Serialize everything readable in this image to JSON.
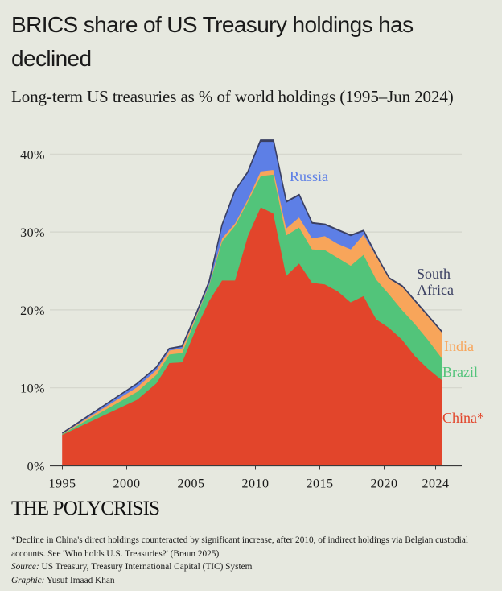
{
  "title": "BRICS share of US Treasury holdings has declined",
  "subtitle": "Long-term US treasuries as % of world holdings (1995–Jun 2024)",
  "brand": "THE POLYCRISIS",
  "footnote": "*Decline in China's direct holdings counteracted by significant increase, after 2010, of indirect holdings via Belgian custodial accounts. See 'Who holds U.S. Treasuries?' (Braun 2025)",
  "source_label": "Source:",
  "source_text": " US Treasury, Treasury International Capital (TIC) System",
  "graphic_label": "Graphic:",
  "graphic_text": " Yusuf Imaad Khan",
  "chart_data": {
    "type": "area",
    "stacked": true,
    "title": "BRICS share of US Treasury holdings has declined",
    "subtitle": "Long-term US treasuries as % of world holdings (1995–Jun 2024)",
    "xlabel": "",
    "ylabel": "",
    "xlim": [
      1995,
      2026.5
    ],
    "ylim": [
      0,
      40
    ],
    "grid": true,
    "x_ticks": [
      1995,
      2000,
      2005,
      2010,
      2015,
      2020,
      2024
    ],
    "x_tick_labels": [
      "1995",
      "2000",
      "2005",
      "2010",
      "2015",
      "2020",
      "2024"
    ],
    "y_ticks": [
      0,
      10,
      20,
      30,
      40
    ],
    "y_tick_labels": [
      "0%",
      "10%",
      "20%",
      "30%",
      "40%"
    ],
    "x": [
      1995.0,
      2000.8,
      2002.3,
      2003.3,
      2004.3,
      2005.4,
      2006.4,
      2007.4,
      2008.4,
      2009.4,
      2010.4,
      2011.4,
      2012.4,
      2013.4,
      2014.4,
      2015.4,
      2016.4,
      2017.4,
      2018.4,
      2019.4,
      2020.4,
      2021.4,
      2022.4,
      2023.4,
      2024.5
    ],
    "series": [
      {
        "name": "China",
        "label": "China*",
        "color": "#e2452b",
        "values": [
          4.0,
          8.5,
          10.6,
          13.2,
          13.3,
          17.7,
          21.2,
          23.8,
          23.8,
          29.5,
          33.2,
          32.4,
          24.4,
          26.0,
          23.5,
          23.3,
          22.4,
          21.0,
          21.8,
          18.8,
          17.7,
          16.2,
          14.1,
          12.5,
          11.0
        ]
      },
      {
        "name": "Brazil",
        "label": "Brazil",
        "color": "#52c47a",
        "values": [
          0.1,
          1.0,
          1.1,
          1.1,
          1.2,
          1.4,
          2.0,
          5.0,
          7.0,
          4.4,
          4.0,
          5.0,
          5.2,
          4.6,
          4.3,
          4.4,
          4.3,
          4.7,
          5.3,
          5.1,
          4.3,
          3.8,
          4.1,
          3.7,
          2.8
        ]
      },
      {
        "name": "India",
        "label": "India",
        "color": "#f8a55a",
        "values": [
          0.05,
          0.6,
          0.6,
          0.5,
          0.6,
          0.2,
          0.1,
          0.4,
          0.3,
          0.3,
          0.6,
          0.6,
          0.9,
          1.3,
          1.4,
          1.8,
          1.8,
          2.1,
          2.6,
          3.0,
          2.0,
          3.0,
          2.9,
          3.0,
          3.3
        ]
      },
      {
        "name": "Russia",
        "label": "Russia",
        "color": "#5d7fe6",
        "values": [
          0.05,
          0.4,
          0.3,
          0.2,
          0.2,
          0.2,
          0.3,
          1.6,
          4.1,
          3.4,
          3.8,
          3.6,
          3.3,
          2.8,
          1.9,
          1.4,
          1.7,
          1.7,
          0.4,
          0.0,
          0.0,
          0.0,
          0.0,
          0.0,
          0.0
        ]
      },
      {
        "name": "South Africa",
        "label": "South Africa",
        "color": "#3b4063",
        "values": [
          0.0,
          0.05,
          0.05,
          0.05,
          0.05,
          0.05,
          0.05,
          0.1,
          0.1,
          0.1,
          0.2,
          0.2,
          0.1,
          0.1,
          0.1,
          0.1,
          0.1,
          0.1,
          0.1,
          0.1,
          0.1,
          0.1,
          0.1,
          0.1,
          0.1
        ]
      }
    ],
    "annotations": [
      {
        "text": "Russia",
        "series": "Russia"
      },
      {
        "text": "South",
        "series": "South Africa"
      },
      {
        "text": "Africa",
        "series": "South Africa"
      },
      {
        "text": "India",
        "series": "India"
      },
      {
        "text": "Brazil",
        "series": "Brazil"
      },
      {
        "text": "China*",
        "series": "China"
      }
    ],
    "legend": "inline-right"
  }
}
